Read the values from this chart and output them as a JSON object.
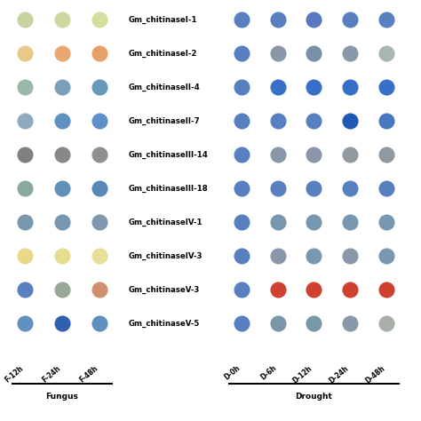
{
  "genes": [
    "Gm_chitinaseI-1",
    "Gm_chitinaseI-2",
    "Gm_chitinaseII-4",
    "Gm_chitinaseII-7",
    "Gm_chitinaseIII-14",
    "Gm_chitinaseIII-18",
    "Gm_chitinaseIV-1",
    "Gm_chitinaseIV-3",
    "Gm_chitinaseV-3",
    "Gm_chitinaseV-5"
  ],
  "fungus_cols": [
    "F-12h",
    "F-24h",
    "F-48h"
  ],
  "drought_cols": [
    "D-0h",
    "D-6h",
    "D-12h",
    "D-24h",
    "D-48h"
  ],
  "fungus_group_label": "Fungus",
  "drought_group_label": "Drought",
  "fungus_colors": [
    [
      "#c8d4a0",
      "#cdd89e",
      "#d4df9e"
    ],
    [
      "#e8c98a",
      "#e8a870",
      "#e8a06a"
    ],
    [
      "#9ab8a8",
      "#7aa0b8",
      "#6898b8"
    ],
    [
      "#90a8c0",
      "#6090c0",
      "#6090c8"
    ],
    [
      "#808080",
      "#888888",
      "#909090"
    ],
    [
      "#88a8a0",
      "#6090b8",
      "#5888b8"
    ],
    [
      "#7898b0",
      "#7898b0",
      "#8098b0"
    ],
    [
      "#e8d888",
      "#e8dc90",
      "#e8e098"
    ],
    [
      "#5880c0",
      "#98a898",
      "#d09070"
    ],
    [
      "#6090c0",
      "#3060b0",
      "#6090c0"
    ]
  ],
  "drought_colors": [
    [
      "#5880c0",
      "#5880c0",
      "#5878c0",
      "#5880c0",
      "#5880c0"
    ],
    [
      "#5880c0",
      "#8898a8",
      "#7890a8",
      "#8898a8",
      "#a8b8b0"
    ],
    [
      "#5880c0",
      "#3870c8",
      "#3870c8",
      "#3870c8",
      "#3870c8"
    ],
    [
      "#5880c0",
      "#5880c0",
      "#5880c0",
      "#2058b8",
      "#4878c0"
    ],
    [
      "#5880c0",
      "#8898a8",
      "#8898a8",
      "#9098a0",
      "#9098a0"
    ],
    [
      "#5880c0",
      "#5880c0",
      "#5880c0",
      "#5880c0",
      "#5880c0"
    ],
    [
      "#5880c0",
      "#7898b0",
      "#7898b0",
      "#7898b0",
      "#7898b0"
    ],
    [
      "#5880c0",
      "#8898a8",
      "#7898b0",
      "#8898a8",
      "#7898b0"
    ],
    [
      "#5880c0",
      "#d04030",
      "#d04030",
      "#d04030",
      "#d04030"
    ],
    [
      "#5880c0",
      "#7898a8",
      "#7898a8",
      "#8898a8",
      "#a8b0a8"
    ]
  ],
  "background_color": "#ffffff",
  "figsize": [
    4.74,
    4.74
  ],
  "dpi": 100
}
